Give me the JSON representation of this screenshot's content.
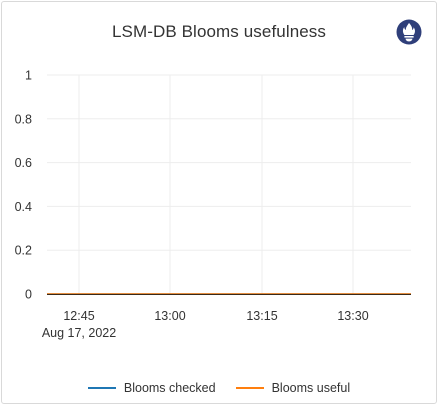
{
  "panel": {
    "logo_icon": "prometheus-logo-icon"
  },
  "chart_data": {
    "type": "line",
    "title": "LSM-DB Blooms usefulness",
    "xlabel": "",
    "ylabel": "",
    "ylim": [
      0,
      1
    ],
    "y_ticks": [
      "0",
      "0.2",
      "0.4",
      "0.6",
      "0.8",
      "1"
    ],
    "x_ticks": [
      {
        "label": "12:45",
        "sublabel": "Aug 17, 2022"
      },
      {
        "label": "13:00",
        "sublabel": ""
      },
      {
        "label": "13:15",
        "sublabel": ""
      },
      {
        "label": "13:30",
        "sublabel": ""
      }
    ],
    "grid": true,
    "legend_position": "bottom",
    "series": [
      {
        "name": "Blooms checked",
        "color": "#1f77b4",
        "values": [
          0,
          0,
          0,
          0,
          0
        ]
      },
      {
        "name": "Blooms useful",
        "color": "#ff7f0e",
        "values": [
          0,
          0,
          0,
          0,
          0
        ]
      }
    ]
  }
}
